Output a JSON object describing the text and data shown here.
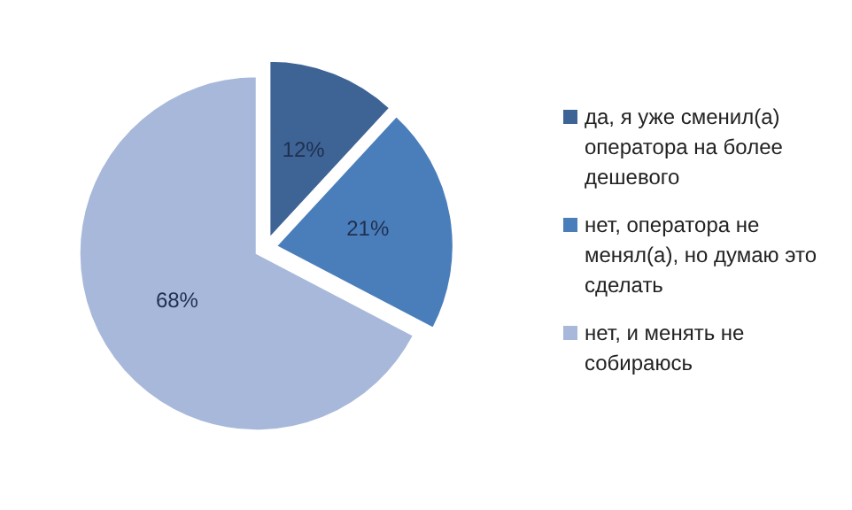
{
  "chart_data": {
    "type": "pie",
    "categories": [
      "да, я уже сменил(а) оператора на более дешевого",
      "нет, оператора не менял(а), но думаю это сделать",
      "нет, и менять не собираюсь"
    ],
    "values": [
      12,
      21,
      68
    ],
    "colors": [
      "#3e6395",
      "#4a7ebb",
      "#a7b8da"
    ],
    "value_labels": [
      "12%",
      "21%",
      "68%"
    ],
    "legend": "right"
  }
}
